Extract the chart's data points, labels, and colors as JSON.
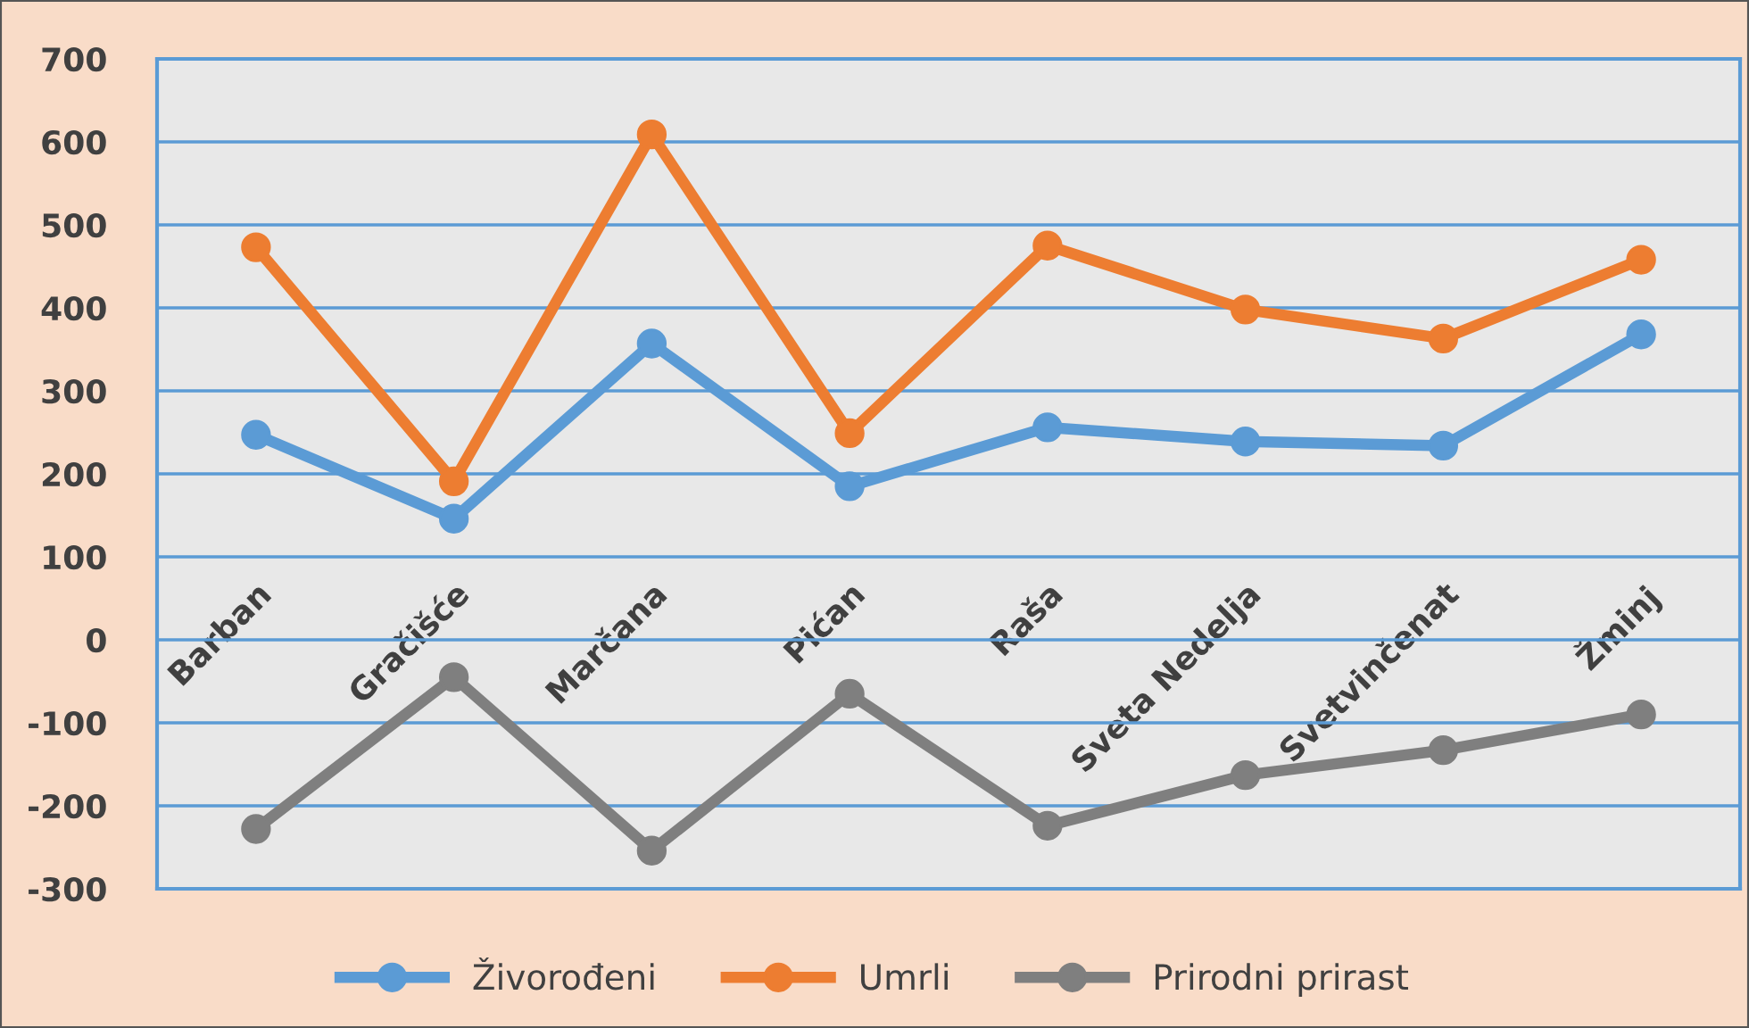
{
  "chart_data": {
    "type": "line",
    "categories": [
      "Barban",
      "Gračišće",
      "Marčana",
      "Pićan",
      "Raša",
      "Sveta Nedelja",
      "Svetvinčenat",
      "Žminj"
    ],
    "series": [
      {
        "name": "Živorođeni",
        "color": "#5b9bd5",
        "values": [
          247,
          146,
          357,
          185,
          256,
          239,
          234,
          368
        ]
      },
      {
        "name": "Umrli",
        "color": "#ed7d31",
        "values": [
          473,
          191,
          609,
          249,
          475,
          398,
          363,
          458
        ]
      },
      {
        "name": "Prirodni prirast",
        "color": "#7f7f7f",
        "values": [
          -228,
          -45,
          -254,
          -65,
          -224,
          -163,
          -133,
          -90
        ]
      }
    ],
    "ylim": [
      -300,
      700
    ],
    "yticks": [
      -300,
      -200,
      -100,
      0,
      100,
      200,
      300,
      400,
      500,
      600,
      700
    ],
    "grid": "y",
    "legend": "bottom",
    "marker": "circle",
    "line_style": "solid"
  }
}
